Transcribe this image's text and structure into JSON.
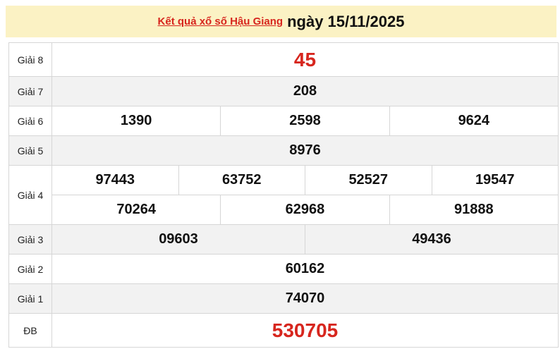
{
  "header": {
    "link": "Kết quả xổ số Hậu Giang",
    "date": "ngày 15/11/2025"
  },
  "rows": [
    {
      "label": "Giải 8",
      "values": [
        "45"
      ]
    },
    {
      "label": "Giải 7",
      "values": [
        "208"
      ]
    },
    {
      "label": "Giải 6",
      "values": [
        "1390",
        "2598",
        "9624"
      ]
    },
    {
      "label": "Giải 5",
      "values": [
        "8976"
      ]
    },
    {
      "label": "Giải 4",
      "values": [
        "97443",
        "63752",
        "52527",
        "19547",
        "70264",
        "62968",
        "91888"
      ]
    },
    {
      "label": "Giải 3",
      "values": [
        "09603",
        "49436"
      ]
    },
    {
      "label": "Giải 2",
      "values": [
        "60162"
      ]
    },
    {
      "label": "Giải 1",
      "values": [
        "74070"
      ]
    },
    {
      "label": "ĐB",
      "values": [
        "530705"
      ]
    }
  ],
  "colors": {
    "accent": "#d7261e",
    "header_bg": "#fbf2c4",
    "alt_row": "#f2f2f2"
  }
}
